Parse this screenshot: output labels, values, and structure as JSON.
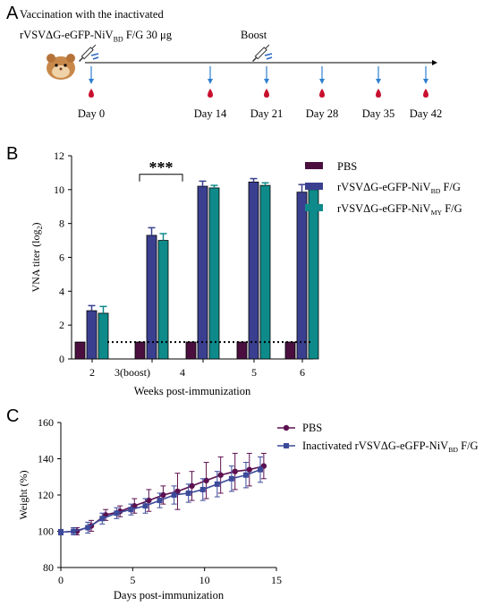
{
  "panels": {
    "a": "A",
    "b": "B",
    "c": "C"
  },
  "timeline": {
    "title_line1": "Vaccination with the inactivated",
    "title_line2_prefix": "rVSVΔG-eGFP-NiV",
    "title_line2_sub": "BD",
    "title_line2_suffix": " F/G 30 μg",
    "boost_label": "Boost",
    "days": [
      "Day 0",
      "Day 14",
      "Day 21",
      "Day 28",
      "Day 35",
      "Day 42"
    ],
    "colors": {
      "arrow": "#2f80d0",
      "blood": "#c8102e",
      "hamster": "#c8884a",
      "syringe": "#2a66c2"
    }
  },
  "chart_data": [
    {
      "type": "bar",
      "ylabel": "VNA titer (log2)",
      "xlabel": "Weeks post-immunization",
      "ylim": [
        0,
        12
      ],
      "yticks": [
        0,
        2,
        4,
        6,
        8,
        10,
        12
      ],
      "categories": [
        "2",
        "3(boost)",
        "4",
        "5",
        "6"
      ],
      "series": [
        {
          "name": "PBS",
          "color": "#4a0f3f",
          "values": [
            1,
            1,
            1,
            1,
            1
          ],
          "errors": [
            0,
            0,
            0,
            0,
            0
          ]
        },
        {
          "name": "rVSVΔG-eGFP-NiV_BD F/G",
          "color": "#3a3f8f",
          "values": [
            2.85,
            7.3,
            10.2,
            10.45,
            9.85
          ],
          "errors": [
            0.3,
            0.45,
            0.3,
            0.2,
            0.45
          ]
        },
        {
          "name": "rVSVΔG-eGFP-NiV_MY F/G",
          "color": "#0e8a8a",
          "values": [
            2.7,
            7.0,
            10.1,
            10.25,
            10.0
          ],
          "errors": [
            0.4,
            0.4,
            0.15,
            0.15,
            0.3
          ]
        }
      ],
      "threshold": 1,
      "significance": {
        "label": "***",
        "from": "3(boost)",
        "to": "4"
      },
      "legend": {
        "pbs": "PBS",
        "bd_prefix": "rVSVΔG-eGFP-NiV",
        "bd_sub": "BD",
        "bd_suffix": " F/G",
        "my_prefix": "rVSVΔG-eGFP-NiV",
        "my_sub": "MY",
        "my_suffix": " F/G"
      }
    },
    {
      "type": "line",
      "ylabel": "Weight (%)",
      "xlabel": "Days post-immunization",
      "xlim": [
        0,
        15
      ],
      "ylim": [
        80,
        160
      ],
      "xticks": [
        0,
        5,
        10,
        15
      ],
      "yticks": [
        80,
        100,
        120,
        140,
        160
      ],
      "x": [
        0,
        1,
        2,
        3,
        4,
        5,
        6,
        7,
        8,
        9,
        10,
        11,
        12,
        13,
        14
      ],
      "series": [
        {
          "name": "PBS",
          "color": "#5c1050",
          "marker": "circle",
          "values": [
            99.5,
            100,
            103,
            109,
            111,
            114,
            117,
            120,
            122,
            125,
            128,
            131,
            133,
            134,
            136
          ],
          "errors": [
            1.5,
            2,
            3,
            3,
            3,
            4,
            6,
            5,
            10,
            8,
            10,
            10,
            10,
            9,
            7
          ]
        },
        {
          "name": "Inactivated rVSVΔG-eGFP-NiV_BD F/G",
          "color": "#3c4a9a",
          "marker": "square",
          "values": [
            99.5,
            100,
            102,
            107,
            110,
            112,
            114,
            117,
            120,
            121,
            123,
            126,
            129,
            131,
            134
          ],
          "errors": [
            1.5,
            2,
            3,
            3,
            3,
            3,
            4,
            4,
            5,
            5,
            6,
            7,
            7,
            7,
            7
          ]
        }
      ],
      "legend": {
        "pbs": "PBS",
        "vac_prefix": "Inactivated rVSVΔG-eGFP-NiV",
        "vac_sub": "BD",
        "vac_suffix": " F/G"
      }
    }
  ]
}
